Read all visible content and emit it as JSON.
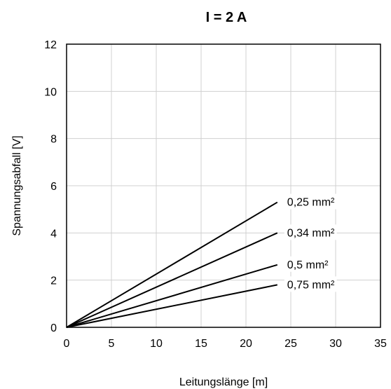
{
  "chart_data": {
    "type": "line",
    "title": "I = 2 A",
    "xlabel": "Leitungslänge [m]",
    "ylabel": "Spannungsabfall [V]",
    "xlim": [
      0,
      35
    ],
    "ylim": [
      0,
      12
    ],
    "xticks": [
      0,
      5,
      10,
      15,
      20,
      25,
      30,
      35
    ],
    "yticks": [
      0,
      2,
      4,
      6,
      8,
      10,
      12
    ],
    "grid": true,
    "legend": "inline-right",
    "series": [
      {
        "name": "0,25 mm²",
        "x": [
          0,
          23.5
        ],
        "y": [
          0,
          5.3
        ]
      },
      {
        "name": "0,34 mm²",
        "x": [
          0,
          23.5
        ],
        "y": [
          0,
          4.0
        ]
      },
      {
        "name": "0,5 mm²",
        "x": [
          0,
          23.5
        ],
        "y": [
          0,
          2.65
        ]
      },
      {
        "name": "0,75 mm²",
        "x": [
          0,
          23.5
        ],
        "y": [
          0,
          1.8
        ]
      }
    ],
    "line_color": "#000000"
  }
}
